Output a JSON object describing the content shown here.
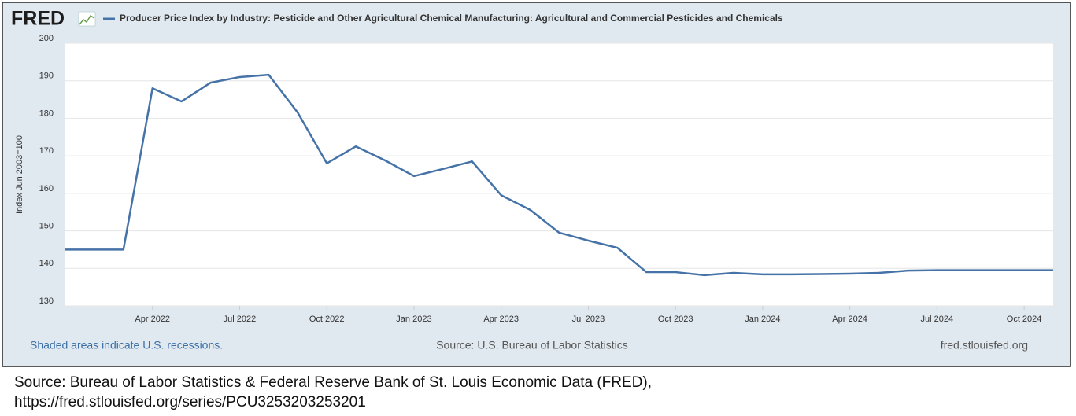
{
  "chart_data": {
    "type": "line",
    "logo": "FRED",
    "title": "Producer Price Index by Industry: Pesticide and Other Agricultural Chemical Manufacturing: Agricultural and Commercial Pesticides and Chemicals",
    "ylabel": "Index Jun 2003=100",
    "footnote": "Shaded areas indicate U.S. recessions.",
    "source": "Source: U.S. Bureau of Labor Statistics",
    "site": "fred.stlouisfed.org",
    "caption": [
      "Source: Bureau of Labor Statistics & Federal Reserve Bank of St. Louis Economic Data (FRED),",
      "https://fred.stlouisfed.org/series/PCU3253203253201"
    ],
    "x": [
      "2022-01",
      "2022-02",
      "2022-03",
      "2022-04",
      "2022-05",
      "2022-06",
      "2022-07",
      "2022-08",
      "2022-09",
      "2022-10",
      "2022-11",
      "2022-12",
      "2023-01",
      "2023-02",
      "2023-03",
      "2023-04",
      "2023-05",
      "2023-06",
      "2023-07",
      "2023-08",
      "2023-09",
      "2023-10",
      "2023-11",
      "2023-12",
      "2024-01",
      "2024-02",
      "2024-03",
      "2024-04",
      "2024-05",
      "2024-06",
      "2024-07",
      "2024-08",
      "2024-09",
      "2024-10",
      "2024-11"
    ],
    "series": [
      {
        "name": "Producer Price Index by Industry: Pesticide and Other Agricultural Chemical Manufacturing: Agricultural and Commercial Pesticides and Chemicals",
        "color": "#4572a7",
        "values": [
          145,
          145,
          145,
          188,
          184.5,
          189.5,
          191,
          191.6,
          181.5,
          168,
          172.5,
          168.8,
          164.6,
          166.5,
          168.5,
          159.5,
          155.6,
          149.5,
          147.4,
          145.5,
          139,
          139,
          138.2,
          138.8,
          138.4,
          138.4,
          138.5,
          138.6,
          138.8,
          139.4,
          139.5,
          139.5,
          139.5,
          139.5,
          139.5
        ]
      }
    ],
    "xlim": [
      "2022-01",
      "2024-11"
    ],
    "xticks": [
      {
        "value": "2022-04",
        "label": "Apr 2022"
      },
      {
        "value": "2022-07",
        "label": "Jul 2022"
      },
      {
        "value": "2022-10",
        "label": "Oct 2022"
      },
      {
        "value": "2023-01",
        "label": "Jan 2023"
      },
      {
        "value": "2023-04",
        "label": "Apr 2023"
      },
      {
        "value": "2023-07",
        "label": "Jul 2023"
      },
      {
        "value": "2023-10",
        "label": "Oct 2023"
      },
      {
        "value": "2024-01",
        "label": "Jan 2024"
      },
      {
        "value": "2024-04",
        "label": "Apr 2024"
      },
      {
        "value": "2024-07",
        "label": "Jul 2024"
      },
      {
        "value": "2024-10",
        "label": "Oct 2024"
      }
    ],
    "ylim": [
      130,
      200
    ],
    "yticks": [
      130,
      140,
      150,
      160,
      170,
      180,
      190,
      200
    ],
    "grid": true
  }
}
